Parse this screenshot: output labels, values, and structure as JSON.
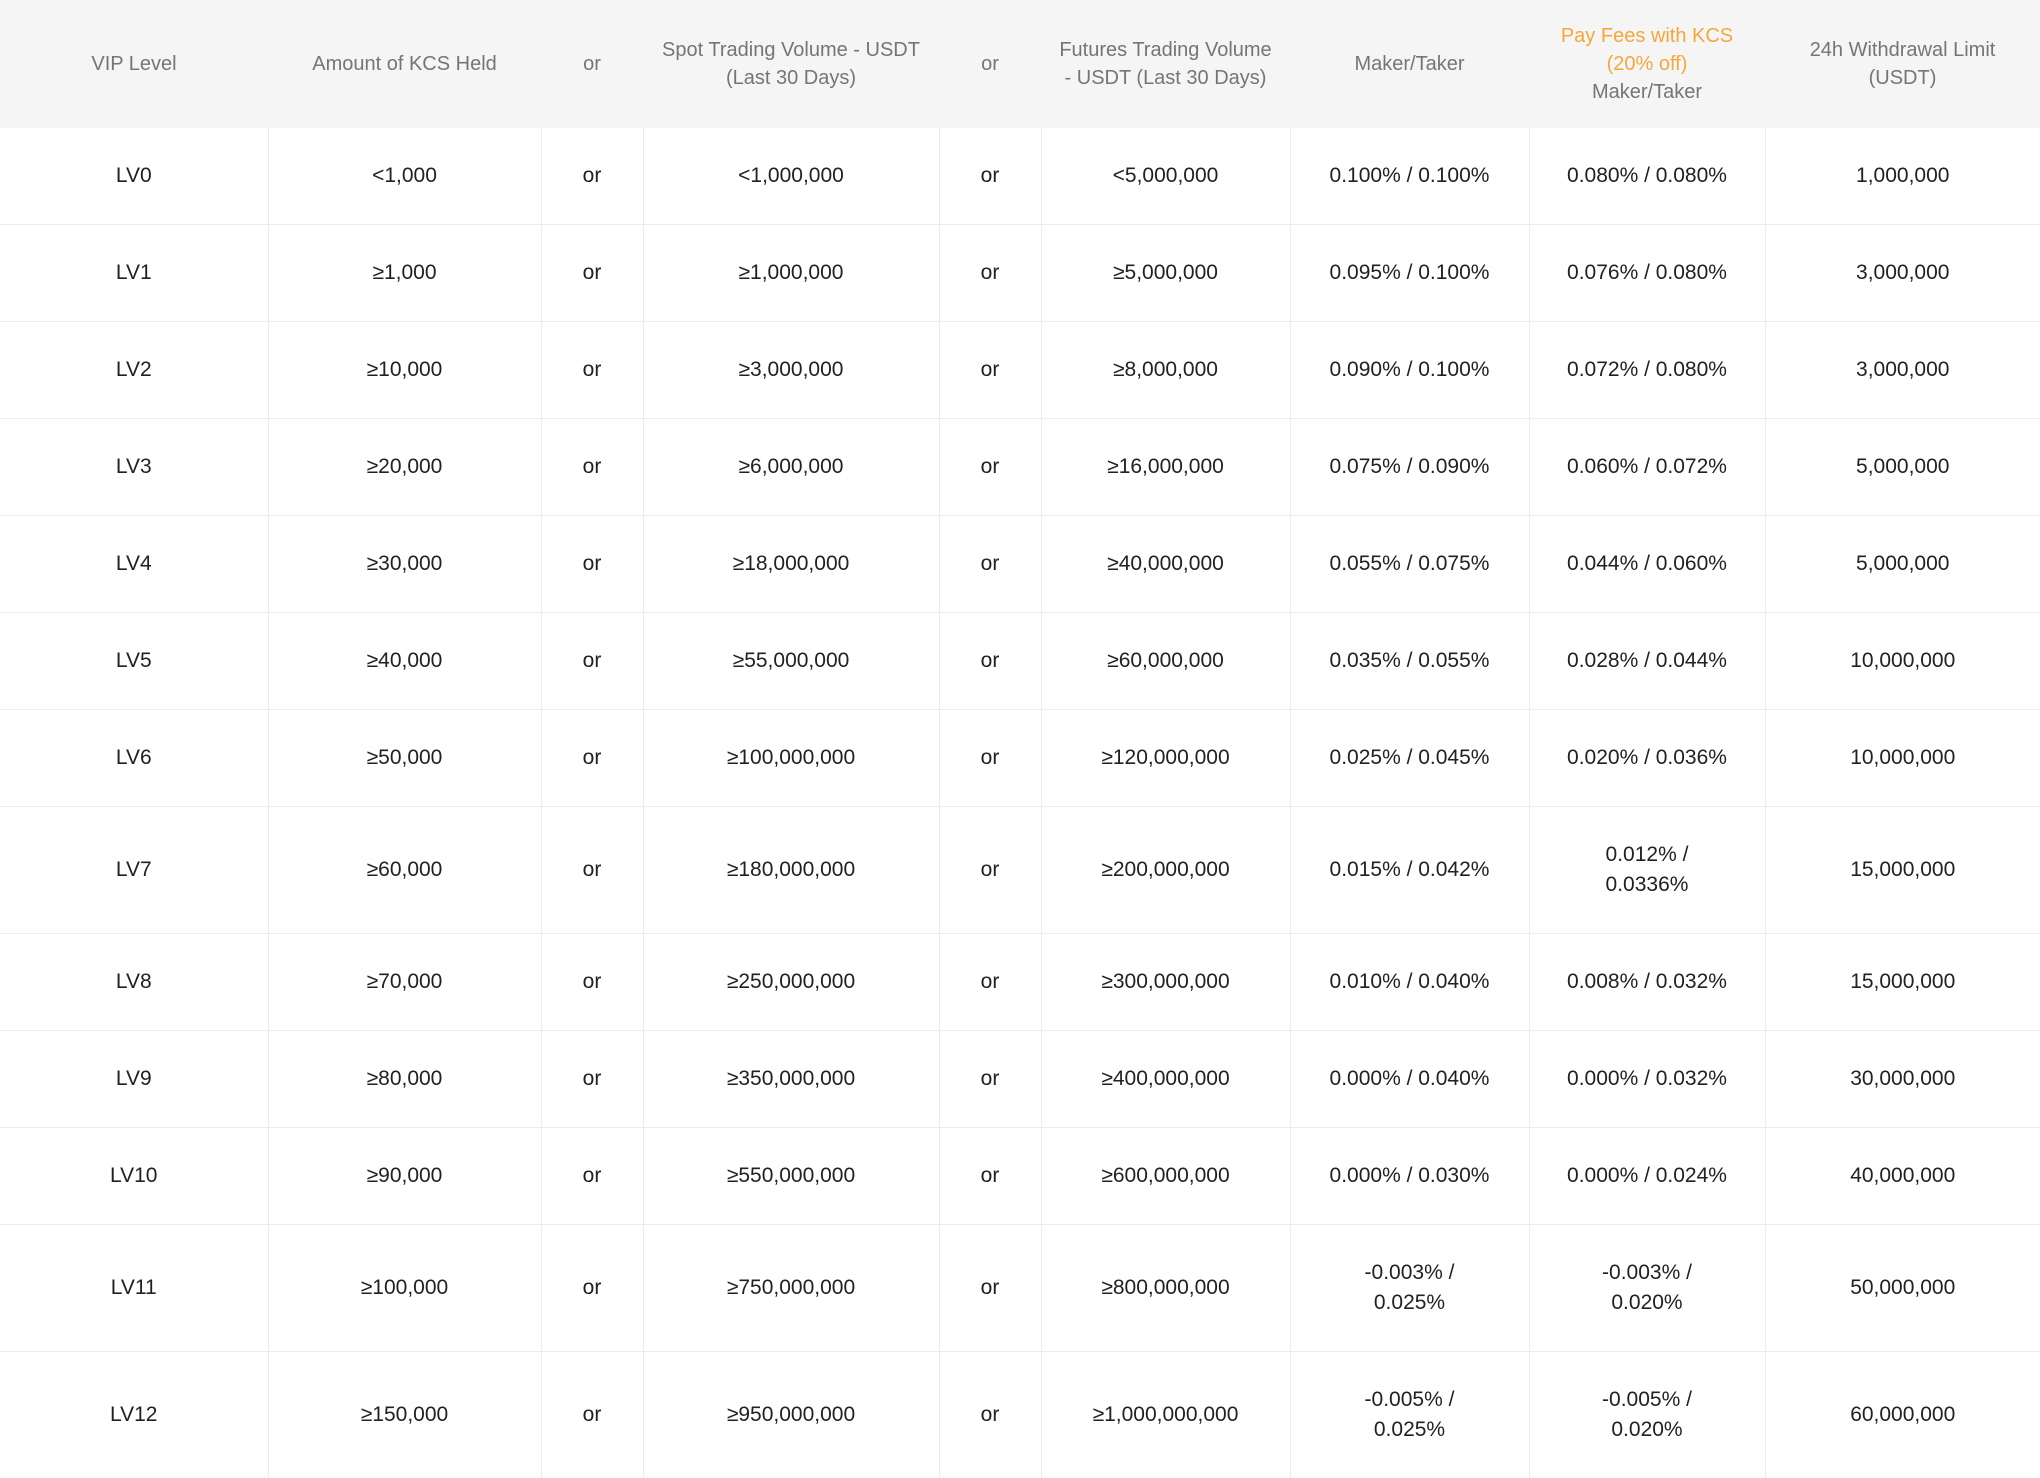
{
  "colors": {
    "accent_orange": "#f5a73c",
    "header_background": "#f5f5f5",
    "header_text": "#757575",
    "body_text": "#212121",
    "border": "#ececec"
  },
  "table": {
    "columns": [
      {
        "key": "level",
        "label": "VIP Level"
      },
      {
        "key": "kcs",
        "label": "Amount of KCS Held"
      },
      {
        "key": "or1",
        "label": "or"
      },
      {
        "key": "spot",
        "label": "Spot Trading Volume - USDT (Last 30 Days)"
      },
      {
        "key": "or2",
        "label": "or"
      },
      {
        "key": "futures",
        "label": "Futures Trading Volume - USDT (Last 30 Days)"
      },
      {
        "key": "maker_taker",
        "label": "Maker/Taker"
      },
      {
        "key": "kcs_fee",
        "label_accent": "Pay Fees with KCS (20% off)",
        "label": "Maker/Taker"
      },
      {
        "key": "withdrawal",
        "label": "24h Withdrawal Limit (USDT)"
      }
    ],
    "rows": [
      {
        "level": "LV0",
        "kcs": "<1,000",
        "or1": "or",
        "spot": "<1,000,000",
        "or2": "or",
        "futures": "<5,000,000",
        "maker_taker": "0.100% / 0.100%",
        "kcs_fee": "0.080% / 0.080%",
        "withdrawal": "1,000,000"
      },
      {
        "level": "LV1",
        "kcs": "≥1,000",
        "or1": "or",
        "spot": "≥1,000,000",
        "or2": "or",
        "futures": "≥5,000,000",
        "maker_taker": "0.095% / 0.100%",
        "kcs_fee": "0.076% / 0.080%",
        "withdrawal": "3,000,000"
      },
      {
        "level": "LV2",
        "kcs": "≥10,000",
        "or1": "or",
        "spot": "≥3,000,000",
        "or2": "or",
        "futures": "≥8,000,000",
        "maker_taker": "0.090% / 0.100%",
        "kcs_fee": "0.072% / 0.080%",
        "withdrawal": "3,000,000"
      },
      {
        "level": "LV3",
        "kcs": "≥20,000",
        "or1": "or",
        "spot": "≥6,000,000",
        "or2": "or",
        "futures": "≥16,000,000",
        "maker_taker": "0.075% / 0.090%",
        "kcs_fee": "0.060% / 0.072%",
        "withdrawal": "5,000,000"
      },
      {
        "level": "LV4",
        "kcs": "≥30,000",
        "or1": "or",
        "spot": "≥18,000,000",
        "or2": "or",
        "futures": "≥40,000,000",
        "maker_taker": "0.055% / 0.075%",
        "kcs_fee": "0.044% / 0.060%",
        "withdrawal": "5,000,000"
      },
      {
        "level": "LV5",
        "kcs": "≥40,000",
        "or1": "or",
        "spot": "≥55,000,000",
        "or2": "or",
        "futures": "≥60,000,000",
        "maker_taker": "0.035% / 0.055%",
        "kcs_fee": "0.028% / 0.044%",
        "withdrawal": "10,000,000"
      },
      {
        "level": "LV6",
        "kcs": "≥50,000",
        "or1": "or",
        "spot": "≥100,000,000",
        "or2": "or",
        "futures": "≥120,000,000",
        "maker_taker": "0.025% / 0.045%",
        "kcs_fee": "0.020% / 0.036%",
        "withdrawal": "10,000,000"
      },
      {
        "level": "LV7",
        "kcs": "≥60,000",
        "or1": "or",
        "spot": "≥180,000,000",
        "or2": "or",
        "futures": "≥200,000,000",
        "maker_taker": "0.015% / 0.042%",
        "kcs_fee": "0.012% /\n0.0336%",
        "withdrawal": "15,000,000"
      },
      {
        "level": "LV8",
        "kcs": "≥70,000",
        "or1": "or",
        "spot": "≥250,000,000",
        "or2": "or",
        "futures": "≥300,000,000",
        "maker_taker": "0.010% / 0.040%",
        "kcs_fee": "0.008% / 0.032%",
        "withdrawal": "15,000,000"
      },
      {
        "level": "LV9",
        "kcs": "≥80,000",
        "or1": "or",
        "spot": "≥350,000,000",
        "or2": "or",
        "futures": "≥400,000,000",
        "maker_taker": "0.000% / 0.040%",
        "kcs_fee": "0.000% / 0.032%",
        "withdrawal": "30,000,000"
      },
      {
        "level": "LV10",
        "kcs": "≥90,000",
        "or1": "or",
        "spot": "≥550,000,000",
        "or2": "or",
        "futures": "≥600,000,000",
        "maker_taker": "0.000% / 0.030%",
        "kcs_fee": "0.000% / 0.024%",
        "withdrawal": "40,000,000"
      },
      {
        "level": "LV11",
        "kcs": "≥100,000",
        "or1": "or",
        "spot": "≥750,000,000",
        "or2": "or",
        "futures": "≥800,000,000",
        "maker_taker": "-0.003% /\n0.025%",
        "kcs_fee": "-0.003% /\n0.020%",
        "withdrawal": "50,000,000"
      },
      {
        "level": "LV12",
        "kcs": "≥150,000",
        "or1": "or",
        "spot": "≥950,000,000",
        "or2": "or",
        "futures": "≥1,000,000,000",
        "maker_taker": "-0.005% /\n0.025%",
        "kcs_fee": "-0.005% /\n0.020%",
        "withdrawal": "60,000,000"
      }
    ]
  }
}
